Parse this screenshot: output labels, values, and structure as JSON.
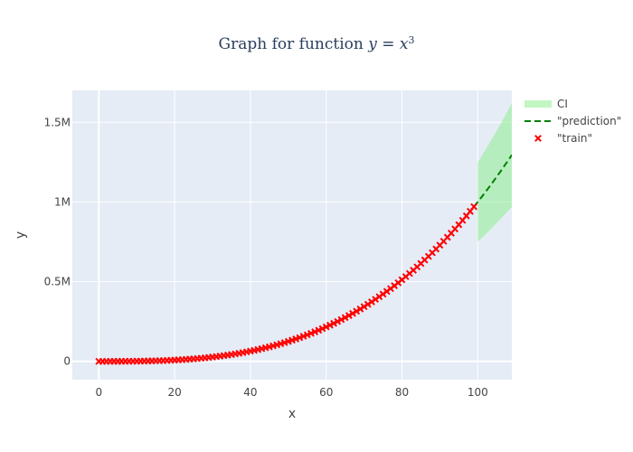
{
  "chart_data": {
    "type": "line",
    "title": {
      "prefix": "Graph for function ",
      "var": "y",
      "eq": " = ",
      "base": "x",
      "exp": "3"
    },
    "xlabel": "x",
    "ylabel": "y",
    "xlim": [
      -7,
      109
    ],
    "ylim": [
      -115000,
      1700000
    ],
    "x_ticks": [
      0,
      20,
      40,
      60,
      80,
      100
    ],
    "x_tick_labels": [
      "0",
      "20",
      "40",
      "60",
      "80",
      "100"
    ],
    "y_ticks": [
      0,
      500000,
      1000000,
      1500000
    ],
    "y_tick_labels": [
      "0",
      "0.5M",
      "1M",
      "1.5M"
    ],
    "grid": true,
    "legend_position": "top-right, outside plot",
    "colors": {
      "plot_bg": "#e5ecf6",
      "grid": "#ffffff",
      "train": "#ff0000",
      "prediction": "#008000",
      "ci_fill": "#90ee90"
    },
    "series": [
      {
        "name": "CI",
        "kind": "band",
        "x": [
          100,
          101,
          102,
          103,
          104,
          105,
          106,
          107,
          108,
          109
        ],
        "lower": [
          750000,
          772500,
          795600,
          819200,
          843500,
          868300,
          893000,
          918000,
          943000,
          968000
        ],
        "upper": [
          1250000,
          1287600,
          1326000,
          1365300,
          1405400,
          1447000,
          1488000,
          1531000,
          1575000,
          1620000
        ]
      },
      {
        "name": "\"prediction\"",
        "kind": "dashed-line",
        "x": [
          99,
          100,
          101,
          102,
          103,
          104,
          105,
          106,
          107,
          108,
          109
        ],
        "y": [
          970299,
          1000000,
          1030301,
          1061208,
          1092727,
          1124864,
          1157625,
          1191016,
          1225043,
          1259712,
          1295029
        ]
      },
      {
        "name": "\"train\"",
        "kind": "markers",
        "marker": "x",
        "x_start": 0,
        "x_end": 99,
        "x_step": 1,
        "y_formula": "x^3"
      }
    ]
  }
}
